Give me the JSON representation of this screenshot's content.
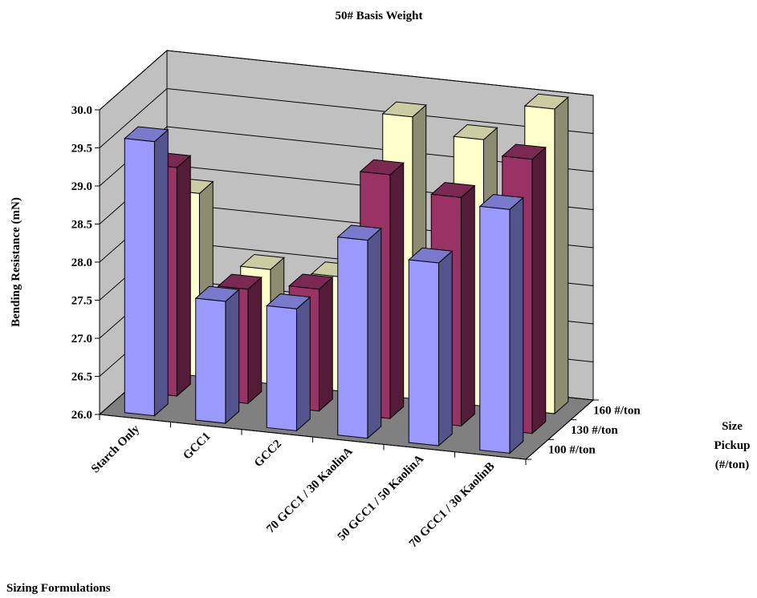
{
  "chart_data": {
    "type": "bar3d",
    "title": "50# Basis Weight",
    "x_label": "Sizing Formulations",
    "y_label": "Bending Resistance (mN)",
    "legend_title": [
      "Size",
      "Pickup",
      "(#/ton)"
    ],
    "categories": [
      "Starch Only",
      "GCC1",
      "GCC2",
      "70 GCC1 / 30 KaolinA",
      "50 GCC1 / 50 KaolinA",
      "70 GCC1 / 30 KaolinB"
    ],
    "series": [
      {
        "name": "100 #/ton",
        "color": "#9999ff",
        "values": [
          29.6,
          27.6,
          27.6,
          28.6,
          28.4,
          29.2
        ]
      },
      {
        "name": "130 #/ton",
        "color": "#993366",
        "values": [
          29.0,
          27.5,
          27.6,
          29.2,
          29.0,
          29.6
        ]
      },
      {
        "name": "160 #/ton",
        "color": "#ffffcc",
        "values": [
          28.4,
          27.5,
          27.5,
          29.7,
          29.5,
          30.0
        ]
      }
    ],
    "ylim": [
      26.0,
      30.0
    ],
    "yticks": [
      {
        "value": 26,
        "label": "26.0"
      },
      26.5,
      {
        "value": 27,
        "label": "27.0"
      },
      27.5,
      {
        "value": 28,
        "label": "28.0"
      },
      28.5,
      {
        "value": 29,
        "label": "29.0"
      },
      29.5,
      {
        "value": 30,
        "label": "30.0"
      }
    ],
    "grid": true
  }
}
